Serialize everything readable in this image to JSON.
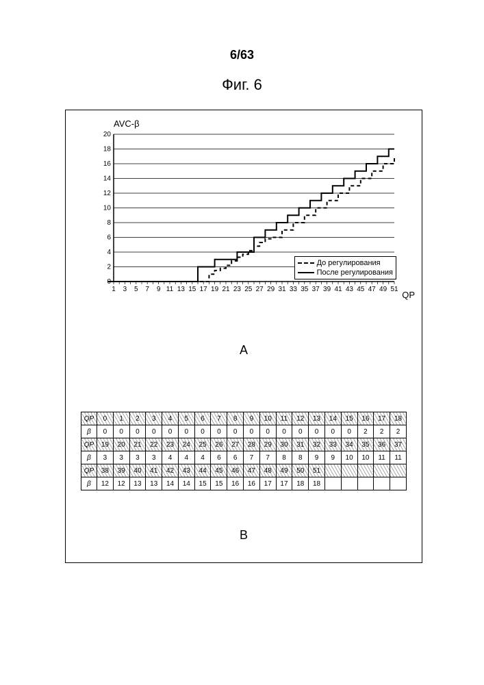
{
  "header": {
    "page_num": "6/63",
    "fig_title": "Фиг. 6"
  },
  "panel_labels": {
    "a": "A",
    "b": "B"
  },
  "chart": {
    "type": "line-step",
    "y_axis_title": "AVC-β",
    "x_axis_title": "QP",
    "background_color": "#ffffff",
    "grid_color": "#000000",
    "axis_color": "#000000",
    "title_fontsize": 13,
    "label_fontsize": 12,
    "tick_fontsize": 10,
    "ylim": [
      0,
      20
    ],
    "ytick_step": 2,
    "xlim": [
      1,
      51
    ],
    "xtick_step": 2,
    "xtick_labels": [
      "1",
      "3",
      "5",
      "7",
      "9",
      "11",
      "13",
      "15",
      "17",
      "19",
      "21",
      "23",
      "25",
      "27",
      "29",
      "31",
      "33",
      "35",
      "37",
      "39",
      "41",
      "43",
      "45",
      "47",
      "49",
      "51"
    ],
    "legend": {
      "position": "lower-right-inside",
      "items": [
        {
          "key": "before",
          "label": "До регулирования",
          "style": "dashed",
          "color": "#000000",
          "width": 2
        },
        {
          "key": "after",
          "label": "После регулирования",
          "style": "solid",
          "color": "#000000",
          "width": 2
        }
      ]
    },
    "series": {
      "before": {
        "style": "dashed",
        "color": "#000000",
        "points_qp_beta": [
          [
            1,
            0
          ],
          [
            2,
            0
          ],
          [
            3,
            0
          ],
          [
            4,
            0
          ],
          [
            5,
            0
          ],
          [
            6,
            0
          ],
          [
            7,
            0
          ],
          [
            8,
            0
          ],
          [
            9,
            0
          ],
          [
            10,
            0
          ],
          [
            11,
            0
          ],
          [
            12,
            0
          ],
          [
            13,
            0
          ],
          [
            14,
            0
          ],
          [
            15,
            0
          ],
          [
            16,
            0
          ],
          [
            17,
            0
          ],
          [
            18,
            1
          ],
          [
            19,
            1.5
          ],
          [
            20,
            1.8
          ],
          [
            21,
            2.2
          ],
          [
            22,
            2.8
          ],
          [
            23,
            3.3
          ],
          [
            24,
            3.7
          ],
          [
            25,
            4.2
          ],
          [
            26,
            4.8
          ],
          [
            27,
            5.3
          ],
          [
            28,
            5.8
          ],
          [
            29,
            6
          ],
          [
            30,
            6
          ],
          [
            31,
            7
          ],
          [
            32,
            7
          ],
          [
            33,
            8
          ],
          [
            34,
            8
          ],
          [
            35,
            9
          ],
          [
            36,
            9
          ],
          [
            37,
            10
          ],
          [
            38,
            10
          ],
          [
            39,
            11
          ],
          [
            40,
            11
          ],
          [
            41,
            12
          ],
          [
            42,
            12
          ],
          [
            43,
            13
          ],
          [
            44,
            13
          ],
          [
            45,
            14
          ],
          [
            46,
            14
          ],
          [
            47,
            15
          ],
          [
            48,
            15
          ],
          [
            49,
            16
          ],
          [
            50,
            16
          ],
          [
            51,
            17
          ]
        ]
      },
      "after": {
        "style": "solid",
        "color": "#000000",
        "points_qp_beta": [
          [
            0,
            0
          ],
          [
            1,
            0
          ],
          [
            2,
            0
          ],
          [
            3,
            0
          ],
          [
            4,
            0
          ],
          [
            5,
            0
          ],
          [
            6,
            0
          ],
          [
            7,
            0
          ],
          [
            8,
            0
          ],
          [
            9,
            0
          ],
          [
            10,
            0
          ],
          [
            11,
            0
          ],
          [
            12,
            0
          ],
          [
            13,
            0
          ],
          [
            14,
            0
          ],
          [
            15,
            0
          ],
          [
            16,
            2
          ],
          [
            17,
            2
          ],
          [
            18,
            2
          ],
          [
            19,
            3
          ],
          [
            20,
            3
          ],
          [
            21,
            3
          ],
          [
            22,
            3
          ],
          [
            23,
            4
          ],
          [
            24,
            4
          ],
          [
            25,
            4
          ],
          [
            26,
            6
          ],
          [
            27,
            6
          ],
          [
            28,
            7
          ],
          [
            29,
            7
          ],
          [
            30,
            8
          ],
          [
            31,
            8
          ],
          [
            32,
            9
          ],
          [
            33,
            9
          ],
          [
            34,
            10
          ],
          [
            35,
            10
          ],
          [
            36,
            11
          ],
          [
            37,
            11
          ],
          [
            38,
            12
          ],
          [
            39,
            12
          ],
          [
            40,
            13
          ],
          [
            41,
            13
          ],
          [
            42,
            14
          ],
          [
            43,
            14
          ],
          [
            44,
            15
          ],
          [
            45,
            15
          ],
          [
            46,
            16
          ],
          [
            47,
            16
          ],
          [
            48,
            17
          ],
          [
            49,
            17
          ],
          [
            50,
            18
          ],
          [
            51,
            18
          ]
        ]
      }
    }
  },
  "table": {
    "columns_per_block": 19,
    "row_label_qp": "QP",
    "row_label_beta": "β",
    "qp_header_hatched": true,
    "border_color": "#000000",
    "fontsize": 10,
    "blocks": [
      {
        "qp": [
          "0",
          "1",
          "2",
          "3",
          "4",
          "5",
          "6",
          "7",
          "8",
          "9",
          "10",
          "11",
          "12",
          "13",
          "14",
          "15",
          "16",
          "17",
          "18"
        ],
        "beta": [
          "0",
          "0",
          "0",
          "0",
          "0",
          "0",
          "0",
          "0",
          "0",
          "0",
          "0",
          "0",
          "0",
          "0",
          "0",
          "0",
          "2",
          "2",
          "2"
        ]
      },
      {
        "qp": [
          "19",
          "20",
          "21",
          "22",
          "23",
          "24",
          "25",
          "26",
          "27",
          "28",
          "29",
          "30",
          "31",
          "32",
          "33",
          "34",
          "35",
          "36",
          "37"
        ],
        "beta": [
          "3",
          "3",
          "3",
          "3",
          "4",
          "4",
          "4",
          "6",
          "6",
          "7",
          "7",
          "8",
          "8",
          "9",
          "9",
          "10",
          "10",
          "11",
          "11"
        ]
      },
      {
        "qp": [
          "38",
          "39",
          "40",
          "41",
          "42",
          "43",
          "44",
          "45",
          "46",
          "47",
          "48",
          "49",
          "50",
          "51",
          "",
          "",
          "",
          "",
          ""
        ],
        "beta": [
          "12",
          "12",
          "13",
          "13",
          "14",
          "14",
          "15",
          "15",
          "16",
          "16",
          "17",
          "17",
          "18",
          "18",
          "",
          "",
          "",
          "",
          ""
        ]
      }
    ]
  }
}
